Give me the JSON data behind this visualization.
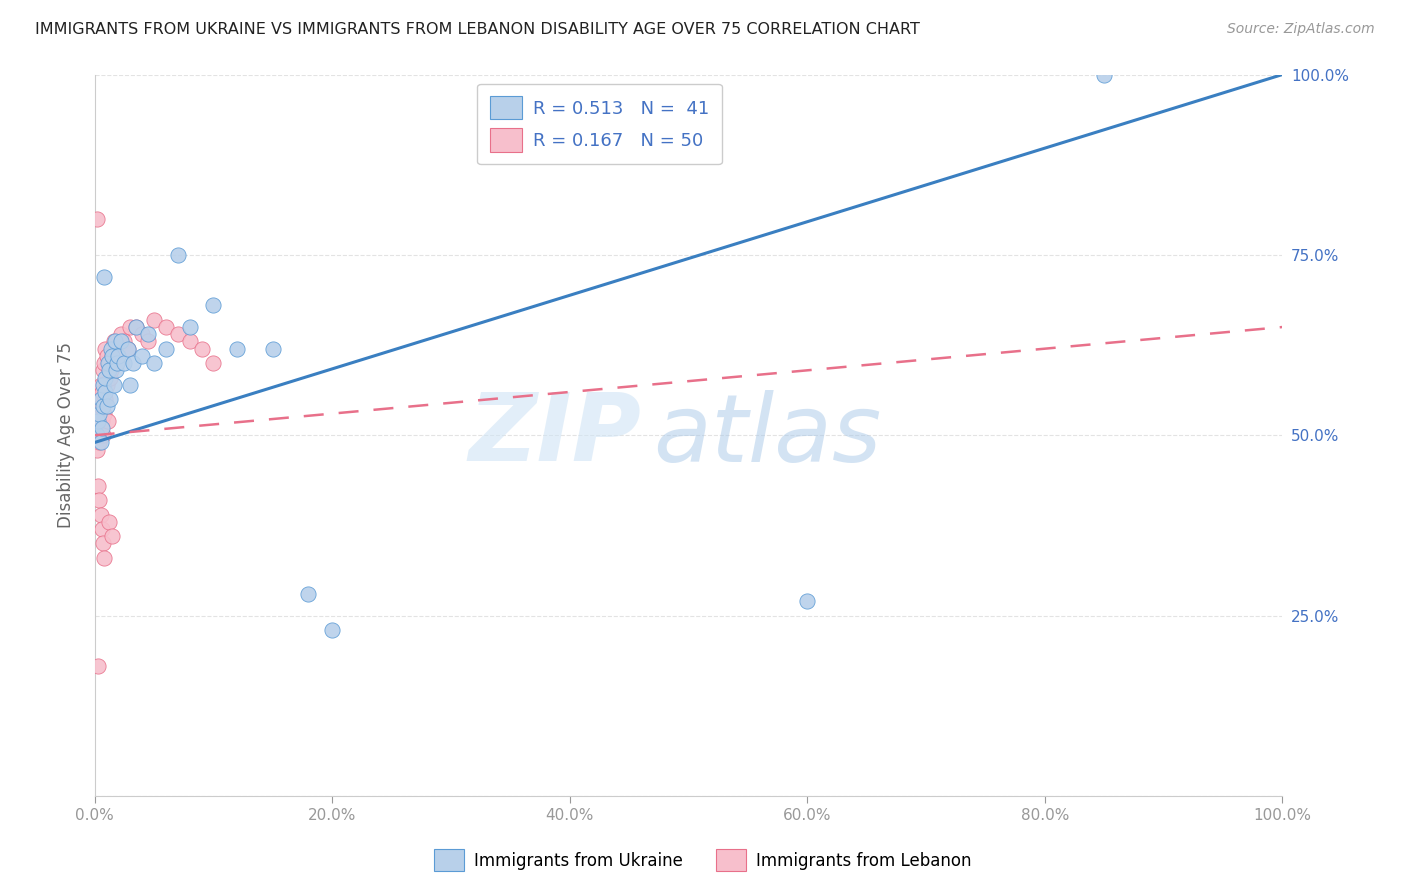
{
  "title": "IMMIGRANTS FROM UKRAINE VS IMMIGRANTS FROM LEBANON DISABILITY AGE OVER 75 CORRELATION CHART",
  "source": "Source: ZipAtlas.com",
  "ylabel": "Disability Age Over 75",
  "R_ukraine": 0.513,
  "N_ukraine": 41,
  "R_lebanon": 0.167,
  "N_lebanon": 50,
  "ukraine_fill_color": "#b8d0ea",
  "ukraine_edge_color": "#5b9bd5",
  "lebanon_fill_color": "#f7bfcc",
  "lebanon_edge_color": "#e8708a",
  "ukraine_line_color": "#3a7fc1",
  "lebanon_line_color": "#e8708a",
  "legend_text_color": "#4472c4",
  "ukraine_scatter_x": [
    0.002,
    0.003,
    0.004,
    0.005,
    0.005,
    0.006,
    0.007,
    0.007,
    0.008,
    0.009,
    0.009,
    0.01,
    0.011,
    0.012,
    0.013,
    0.014,
    0.015,
    0.016,
    0.017,
    0.018,
    0.019,
    0.02,
    0.022,
    0.025,
    0.028,
    0.03,
    0.032,
    0.035,
    0.04,
    0.045,
    0.05,
    0.06,
    0.07,
    0.08,
    0.1,
    0.12,
    0.15,
    0.18,
    0.2,
    0.6,
    0.85
  ],
  "ukraine_scatter_y": [
    0.5,
    0.52,
    0.53,
    0.49,
    0.55,
    0.51,
    0.54,
    0.57,
    0.72,
    0.56,
    0.58,
    0.54,
    0.6,
    0.59,
    0.55,
    0.62,
    0.61,
    0.57,
    0.63,
    0.59,
    0.6,
    0.61,
    0.63,
    0.6,
    0.62,
    0.57,
    0.6,
    0.65,
    0.61,
    0.64,
    0.6,
    0.62,
    0.75,
    0.65,
    0.68,
    0.62,
    0.62,
    0.28,
    0.23,
    0.27,
    1.0
  ],
  "lebanon_scatter_x": [
    0.001,
    0.002,
    0.002,
    0.003,
    0.003,
    0.004,
    0.004,
    0.005,
    0.005,
    0.006,
    0.006,
    0.007,
    0.007,
    0.008,
    0.008,
    0.009,
    0.009,
    0.01,
    0.01,
    0.011,
    0.012,
    0.013,
    0.014,
    0.015,
    0.016,
    0.018,
    0.02,
    0.022,
    0.025,
    0.028,
    0.03,
    0.035,
    0.04,
    0.045,
    0.05,
    0.06,
    0.07,
    0.08,
    0.09,
    0.1,
    0.003,
    0.004,
    0.005,
    0.006,
    0.007,
    0.008,
    0.012,
    0.015,
    0.002,
    0.003
  ],
  "lebanon_scatter_y": [
    0.5,
    0.52,
    0.48,
    0.53,
    0.51,
    0.55,
    0.49,
    0.54,
    0.57,
    0.52,
    0.56,
    0.59,
    0.5,
    0.6,
    0.53,
    0.62,
    0.55,
    0.57,
    0.61,
    0.52,
    0.6,
    0.58,
    0.59,
    0.61,
    0.63,
    0.6,
    0.62,
    0.64,
    0.63,
    0.62,
    0.65,
    0.65,
    0.64,
    0.63,
    0.66,
    0.65,
    0.64,
    0.63,
    0.62,
    0.6,
    0.43,
    0.41,
    0.39,
    0.37,
    0.35,
    0.33,
    0.38,
    0.36,
    0.8,
    0.18
  ],
  "ukr_line_x0": 0.0,
  "ukr_line_y0": 0.49,
  "ukr_line_x1": 1.0,
  "ukr_line_y1": 1.0,
  "leb_line_x0": 0.0,
  "leb_line_y0": 0.5,
  "leb_line_x1": 1.0,
  "leb_line_y1": 0.65,
  "xlim": [
    0.0,
    1.0
  ],
  "ylim": [
    0.0,
    1.0
  ],
  "xtick_vals": [
    0.0,
    0.2,
    0.4,
    0.6,
    0.8,
    1.0
  ],
  "xtick_labels": [
    "0.0%",
    "20.0%",
    "40.0%",
    "60.0%",
    "80.0%",
    "100.0%"
  ],
  "ytick_vals": [
    0.0,
    0.25,
    0.5,
    0.75,
    1.0
  ],
  "ytick_labels_right": [
    "",
    "25.0%",
    "50.0%",
    "75.0%",
    "100.0%"
  ],
  "watermark_zip": "ZIP",
  "watermark_atlas": "atlas",
  "background_color": "#ffffff",
  "grid_color": "#e0e0e0",
  "axis_color": "#cccccc"
}
